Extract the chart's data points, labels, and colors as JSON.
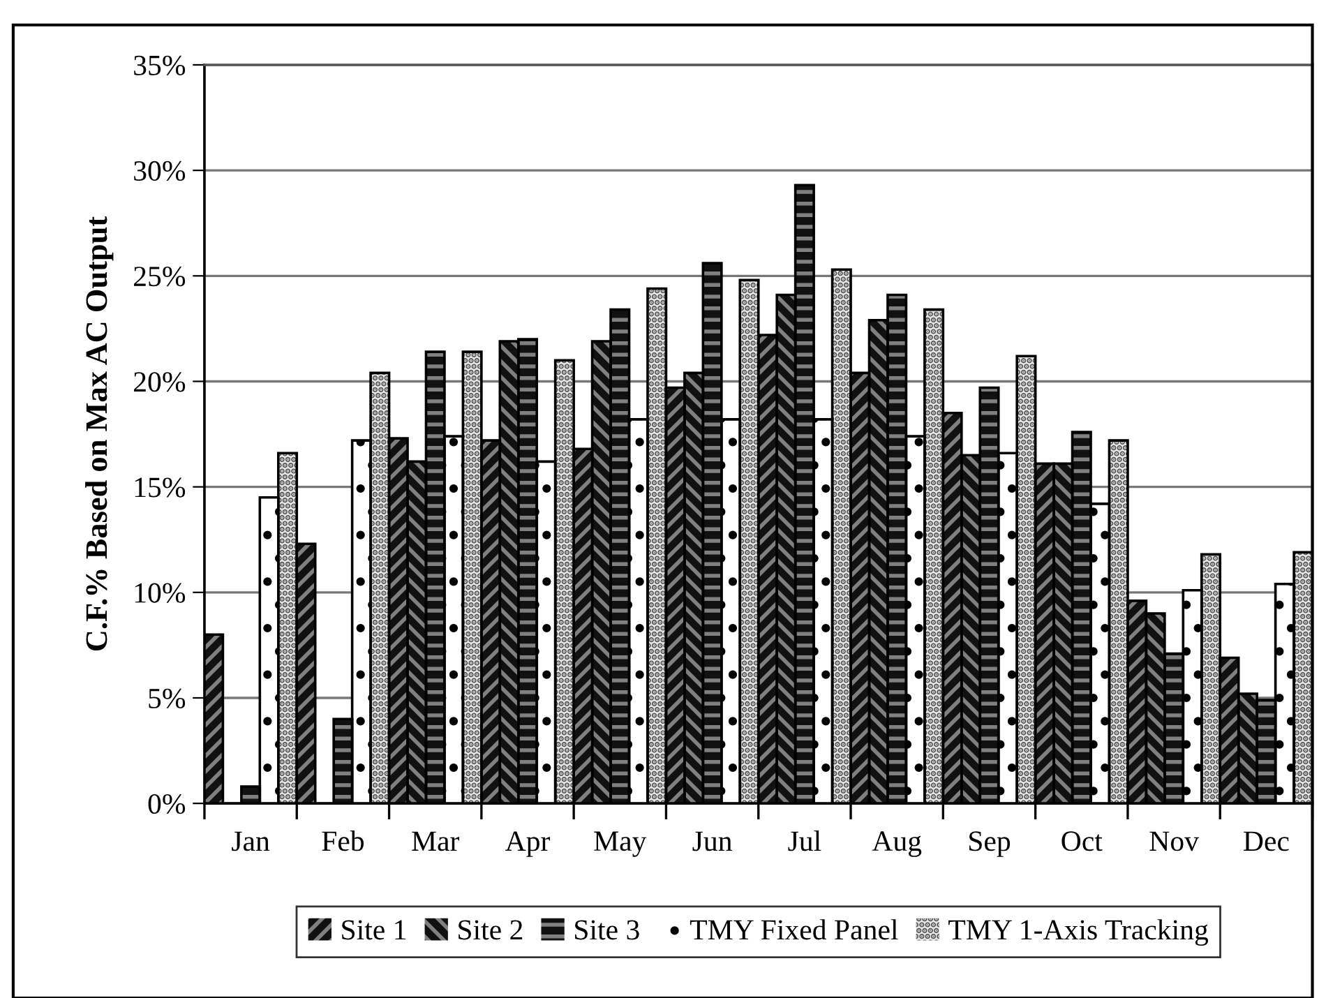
{
  "chart_data": {
    "type": "bar",
    "ylabel": "C.F.% Based on Max AC Output",
    "categories": [
      "Jan",
      "Feb",
      "Mar",
      "Apr",
      "May",
      "Jun",
      "Jul",
      "Aug",
      "Sep",
      "Oct",
      "Nov",
      "Dec"
    ],
    "series": [
      {
        "name": "Site 1",
        "color": "#111111",
        "values": [
          8.0,
          12.3,
          17.3,
          17.2,
          16.8,
          19.7,
          22.2,
          20.4,
          18.5,
          16.1,
          9.6,
          6.9
        ]
      },
      {
        "name": "Site 2",
        "color": "#111111",
        "values": [
          null,
          null,
          16.2,
          21.9,
          21.9,
          20.4,
          24.1,
          22.9,
          16.5,
          16.1,
          9.0,
          5.2
        ]
      },
      {
        "name": "Site 3",
        "color": "#111111",
        "values": [
          0.8,
          4.0,
          21.4,
          22.0,
          23.4,
          25.6,
          29.3,
          24.1,
          19.7,
          17.6,
          7.1,
          4.9
        ]
      },
      {
        "name": "TMY Fixed Panel",
        "color": "#ffffff",
        "values": [
          14.5,
          17.2,
          17.4,
          16.2,
          18.2,
          18.2,
          18.2,
          17.4,
          16.6,
          14.2,
          10.1,
          10.4
        ]
      },
      {
        "name": "TMY 1-Axis Tracking",
        "color": "#e6e6e6",
        "values": [
          16.6,
          20.4,
          21.4,
          21.0,
          24.4,
          24.8,
          25.3,
          23.4,
          21.2,
          17.2,
          11.8,
          11.9
        ]
      }
    ],
    "ylim": [
      0,
      35
    ],
    "yticks": [
      {
        "value": 0,
        "label": "0%"
      },
      {
        "value": 5,
        "label": "5%"
      },
      {
        "value": 10,
        "label": "10%"
      },
      {
        "value": 15,
        "label": "15%"
      },
      {
        "value": 20,
        "label": "20%"
      },
      {
        "value": 25,
        "label": "25%"
      },
      {
        "value": 30,
        "label": "30%"
      },
      {
        "value": 35,
        "label": "35%"
      }
    ],
    "grid": "y",
    "legend": "bottom"
  }
}
